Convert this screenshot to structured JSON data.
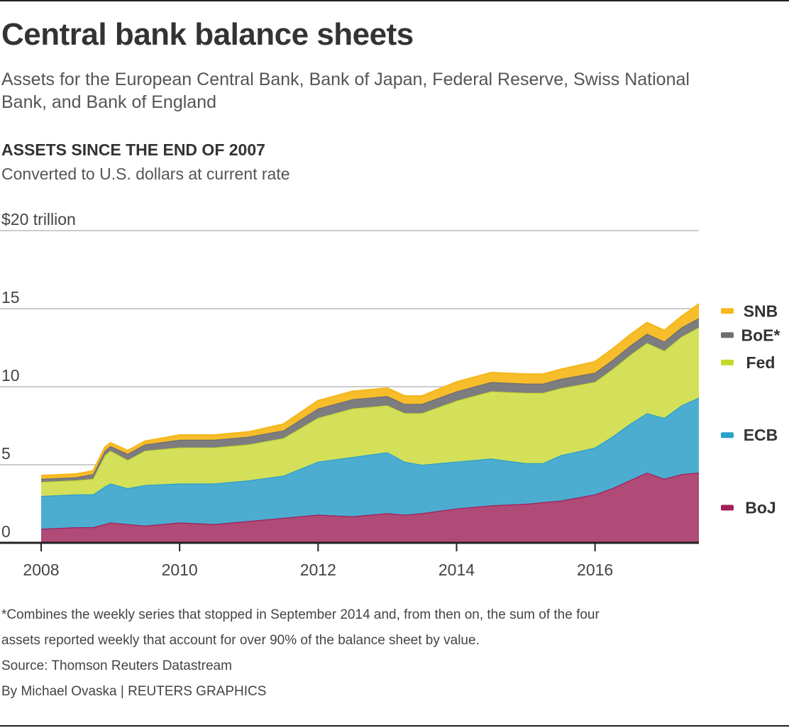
{
  "header": {
    "title": "Central bank balance sheets",
    "subtitle": "Assets for the European Central Bank, Bank of Japan, Federal Reserve, Swiss National Bank, and Bank of England"
  },
  "chart_data": {
    "type": "area",
    "stacked": true,
    "title": "ASSETS SINCE THE END OF 2007",
    "subtitle": "Converted to U.S. dollars at current rate",
    "ylim": [
      0,
      20
    ],
    "xlim": [
      2008.0,
      2017.5
    ],
    "y_ticks": [
      0,
      5,
      10,
      15,
      20
    ],
    "y_tick_labels": [
      "0",
      "5",
      "10",
      "15",
      "$20 trillion"
    ],
    "x_ticks": [
      2008,
      2010,
      2012,
      2014,
      2016
    ],
    "x_tick_labels": [
      "2008",
      "2010",
      "2012",
      "2014",
      "2016"
    ],
    "grid": true,
    "legend_position": "right, inline beside series ends",
    "x": [
      2008.0,
      2008.5,
      2008.75,
      2008.92,
      2009.0,
      2009.25,
      2009.5,
      2010.0,
      2010.5,
      2011.0,
      2011.5,
      2012.0,
      2012.5,
      2013.0,
      2013.25,
      2013.5,
      2014.0,
      2014.5,
      2015.0,
      2015.25,
      2015.5,
      2016.0,
      2016.25,
      2016.5,
      2016.75,
      2017.0,
      2017.25,
      2017.5
    ],
    "series": [
      {
        "name": "BoJ",
        "color": "#a2205a",
        "fill": "#b04a76",
        "values": [
          0.9,
          1.0,
          1.0,
          1.2,
          1.3,
          1.2,
          1.1,
          1.3,
          1.2,
          1.4,
          1.6,
          1.8,
          1.7,
          1.9,
          1.8,
          1.9,
          2.2,
          2.4,
          2.5,
          2.6,
          2.7,
          3.1,
          3.5,
          4.0,
          4.5,
          4.1,
          4.4,
          4.5
        ]
      },
      {
        "name": "ECB",
        "color": "#2ba0c8",
        "fill": "#4cadd1",
        "values": [
          2.1,
          2.1,
          2.1,
          2.4,
          2.5,
          2.3,
          2.6,
          2.5,
          2.6,
          2.6,
          2.7,
          3.4,
          3.8,
          3.9,
          3.4,
          3.1,
          3.0,
          3.0,
          2.6,
          2.5,
          2.9,
          3.0,
          3.3,
          3.6,
          3.8,
          3.9,
          4.4,
          4.8
        ]
      },
      {
        "name": "Fed",
        "color": "#c6d92b",
        "fill": "#d4e05a",
        "values": [
          0.9,
          0.9,
          1.0,
          2.0,
          2.1,
          1.8,
          2.2,
          2.3,
          2.3,
          2.3,
          2.4,
          2.8,
          3.1,
          3.0,
          3.1,
          3.3,
          3.9,
          4.3,
          4.5,
          4.5,
          4.3,
          4.2,
          4.3,
          4.4,
          4.5,
          4.3,
          4.4,
          4.5
        ]
      },
      {
        "name": "BoE*",
        "color": "#6d6e70",
        "fill": "#7d7d80",
        "values": [
          0.2,
          0.2,
          0.3,
          0.3,
          0.3,
          0.4,
          0.4,
          0.5,
          0.5,
          0.5,
          0.5,
          0.6,
          0.6,
          0.6,
          0.6,
          0.6,
          0.6,
          0.6,
          0.6,
          0.6,
          0.6,
          0.6,
          0.6,
          0.6,
          0.6,
          0.6,
          0.6,
          0.6
        ]
      },
      {
        "name": "SNB",
        "color": "#f5b81e",
        "fill": "#f7bd2a",
        "values": [
          0.2,
          0.2,
          0.2,
          0.2,
          0.2,
          0.2,
          0.2,
          0.3,
          0.3,
          0.3,
          0.4,
          0.5,
          0.5,
          0.5,
          0.5,
          0.5,
          0.6,
          0.6,
          0.6,
          0.6,
          0.6,
          0.7,
          0.7,
          0.7,
          0.7,
          0.7,
          0.7,
          0.9
        ]
      }
    ]
  },
  "notes": {
    "footnote_line1": "*Combines the weekly series that stopped in September 2014 and, from then on, the sum of the four",
    "footnote_line2": "assets reported weekly that account for over 90% of the balance sheet by value.",
    "source": "Source: Thomson Reuters Datastream",
    "byline": "By Michael Ovaska | REUTERS GRAPHICS"
  }
}
